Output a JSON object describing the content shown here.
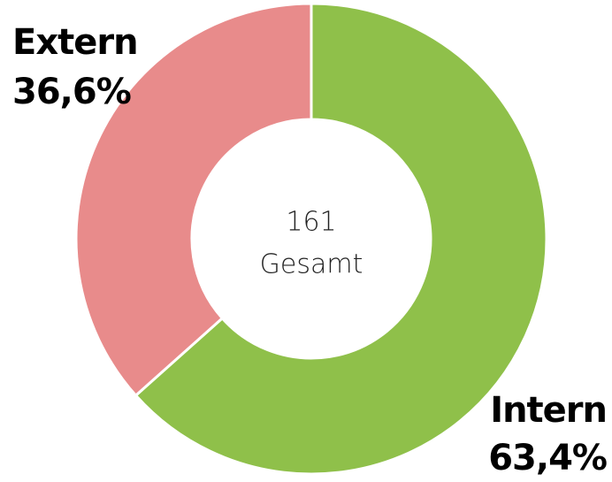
{
  "chart_data": {
    "type": "donut",
    "categories": [
      "Intern",
      "Extern"
    ],
    "values": [
      63.4,
      36.6
    ],
    "value_labels": [
      "63,4%",
      "36,6%"
    ],
    "colors": [
      "#8fc04a",
      "#e88b8b"
    ],
    "center_value": 161,
    "center_label": "Gesamt"
  }
}
